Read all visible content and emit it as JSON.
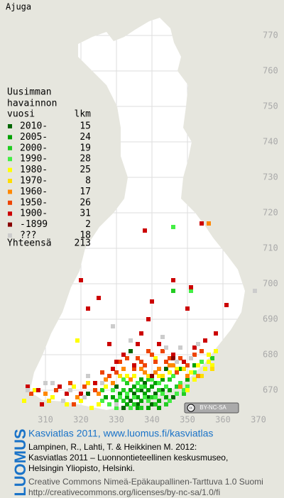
{
  "title": "Ajuga",
  "legend": {
    "title": [
      "Uusimman",
      "havainnon",
      "vuosi"
    ],
    "count_header": "lkm",
    "rows": [
      {
        "label": "2010-",
        "count": 15,
        "color": "#006600",
        "points": [
          [
            337,
            670
          ],
          [
            335,
            669
          ],
          [
            339,
            668
          ],
          [
            341,
            669
          ],
          [
            334,
            667
          ],
          [
            336,
            666
          ],
          [
            330,
            671
          ],
          [
            343,
            670
          ],
          [
            334,
            681
          ],
          [
            344,
            676
          ],
          [
            332,
            665
          ],
          [
            338,
            672
          ],
          [
            346,
            668
          ],
          [
            322,
            669
          ],
          [
            340,
            666
          ]
        ]
      },
      {
        "label": "2005-",
        "count": 24,
        "color": "#00a000",
        "points": [
          [
            336,
            668
          ],
          [
            338,
            669
          ],
          [
            340,
            671
          ],
          [
            333,
            668
          ],
          [
            337,
            667
          ],
          [
            342,
            667
          ],
          [
            335,
            671
          ],
          [
            339,
            670
          ],
          [
            331,
            669
          ],
          [
            344,
            668
          ],
          [
            336,
            665
          ],
          [
            341,
            672
          ],
          [
            348,
            676
          ],
          [
            333,
            666
          ],
          [
            345,
            670
          ],
          [
            337,
            673
          ],
          [
            329,
            668
          ],
          [
            342,
            665
          ],
          [
            339,
            665
          ],
          [
            334,
            670
          ],
          [
            350,
            673
          ],
          [
            327,
            668
          ],
          [
            343,
            673
          ],
          [
            352,
            677
          ]
        ]
      },
      {
        "label": "2000-",
        "count": 19,
        "color": "#22cc22",
        "points": [
          [
            346,
            698
          ],
          [
            357,
            679
          ],
          [
            338,
            671
          ],
          [
            332,
            670
          ],
          [
            340,
            668
          ],
          [
            344,
            666
          ],
          [
            336,
            670
          ],
          [
            330,
            667
          ],
          [
            342,
            670
          ],
          [
            335,
            666
          ],
          [
            347,
            671
          ],
          [
            337,
            665
          ],
          [
            341,
            666
          ],
          [
            333,
            672
          ],
          [
            349,
            669
          ],
          [
            326,
            670
          ],
          [
            339,
            673
          ],
          [
            345,
            673
          ],
          [
            332,
            667
          ]
        ]
      },
      {
        "label": "1990-",
        "count": 28,
        "color": "#44ee44",
        "points": [
          [
            346,
            716
          ],
          [
            351,
            698
          ],
          [
            338,
            668
          ],
          [
            336,
            672
          ],
          [
            334,
            665
          ],
          [
            340,
            673
          ],
          [
            343,
            669
          ],
          [
            331,
            668
          ],
          [
            345,
            667
          ],
          [
            347,
            669
          ],
          [
            329,
            670
          ],
          [
            328,
            666
          ],
          [
            341,
            668
          ],
          [
            350,
            671
          ],
          [
            335,
            668
          ],
          [
            339,
            667
          ],
          [
            333,
            669
          ],
          [
            344,
            671
          ],
          [
            337,
            671
          ],
          [
            342,
            672
          ],
          [
            330,
            665
          ],
          [
            352,
            675
          ],
          [
            348,
            672
          ],
          [
            326,
            667
          ],
          [
            354,
            678
          ],
          [
            346,
            674
          ],
          [
            332,
            673
          ],
          [
            349,
            670
          ]
        ]
      },
      {
        "label": "1980-",
        "count": 25,
        "color": "#ffff00",
        "points": [
          [
            319,
            684
          ],
          [
            341,
            679
          ],
          [
            356,
            680
          ],
          [
            353,
            677
          ],
          [
            355,
            676
          ],
          [
            307,
            670
          ],
          [
            304,
            667
          ],
          [
            312,
            668
          ],
          [
            318,
            671
          ],
          [
            325,
            666
          ],
          [
            333,
            674
          ],
          [
            350,
            670
          ],
          [
            352,
            673
          ],
          [
            342,
            674
          ],
          [
            356,
            678
          ],
          [
            327,
            671
          ],
          [
            358,
            681
          ],
          [
            323,
            665
          ],
          [
            347,
            676
          ],
          [
            320,
            667
          ],
          [
            345,
            675
          ],
          [
            351,
            675
          ],
          [
            316,
            666
          ],
          [
            335,
            674
          ],
          [
            357,
            677
          ]
        ]
      },
      {
        "label": "1970-",
        "count": 8,
        "color": "#ffdd00",
        "points": [
          [
            354,
            674
          ],
          [
            311,
            667
          ],
          [
            343,
            674
          ],
          [
            322,
            672
          ],
          [
            349,
            676
          ],
          [
            331,
            674
          ],
          [
            357,
            676
          ],
          [
            339,
            674
          ]
        ]
      },
      {
        "label": "1960-",
        "count": 17,
        "color": "#ff8800",
        "points": [
          [
            356,
            717
          ],
          [
            342,
            676
          ],
          [
            348,
            671
          ],
          [
            329,
            672
          ],
          [
            345,
            677
          ],
          [
            325,
            669
          ],
          [
            353,
            674
          ],
          [
            338,
            675
          ],
          [
            341,
            675
          ],
          [
            334,
            673
          ],
          [
            310,
            669
          ],
          [
            319,
            668
          ],
          [
            346,
            677
          ],
          [
            337,
            676
          ],
          [
            350,
            674
          ],
          [
            327,
            673
          ],
          [
            332,
            676
          ]
        ]
      },
      {
        "label": "1950-",
        "count": 26,
        "color": "#ee4400",
        "points": [
          [
            341,
            678
          ],
          [
            333,
            679
          ],
          [
            338,
            677
          ],
          [
            336,
            679
          ],
          [
            345,
            679
          ],
          [
            352,
            680
          ],
          [
            343,
            681
          ],
          [
            330,
            675
          ],
          [
            324,
            670
          ],
          [
            317,
            672
          ],
          [
            313,
            670
          ],
          [
            321,
            671
          ],
          [
            348,
            679
          ],
          [
            339,
            681
          ],
          [
            328,
            674
          ],
          [
            335,
            676
          ],
          [
            354,
            681
          ],
          [
            331,
            678
          ],
          [
            347,
            675
          ],
          [
            326,
            675
          ],
          [
            306,
            669
          ],
          [
            344,
            678
          ],
          [
            350,
            677
          ],
          [
            340,
            680
          ],
          [
            337,
            678
          ],
          [
            318,
            666
          ]
        ]
      },
      {
        "label": "1900-",
        "count": 31,
        "color": "#cc0000",
        "points": [
          [
            338,
            715
          ],
          [
            354,
            717
          ],
          [
            320,
            701
          ],
          [
            346,
            701
          ],
          [
            351,
            699
          ],
          [
            325,
            696
          ],
          [
            322,
            693
          ],
          [
            340,
            695
          ],
          [
            361,
            694
          ],
          [
            350,
            693
          ],
          [
            339,
            690
          ],
          [
            337,
            686
          ],
          [
            358,
            686
          ],
          [
            328,
            683
          ],
          [
            330,
            678
          ],
          [
            349,
            678
          ],
          [
            305,
            671
          ],
          [
            308,
            670
          ],
          [
            314,
            671
          ],
          [
            316,
            669
          ],
          [
            320,
            669
          ],
          [
            324,
            672
          ],
          [
            329,
            676
          ],
          [
            332,
            680
          ],
          [
            336,
            683
          ],
          [
            342,
            683
          ],
          [
            346,
            680
          ],
          [
            352,
            682
          ],
          [
            335,
            677
          ],
          [
            355,
            684
          ],
          [
            309,
            666
          ]
        ]
      },
      {
        "label": "-1899",
        "count": 2,
        "color": "#880000",
        "points": [
          [
            340,
            674
          ],
          [
            346,
            679
          ]
        ]
      },
      {
        "label": "???",
        "count": 18,
        "color": "#cccccc",
        "points": [
          [
            369,
            698
          ],
          [
            329,
            688
          ],
          [
            343,
            685
          ],
          [
            312,
            672
          ],
          [
            305,
            670
          ],
          [
            315,
            667
          ],
          [
            321,
            668
          ],
          [
            330,
            666
          ],
          [
            344,
            682
          ],
          [
            348,
            682
          ],
          [
            326,
            672
          ],
          [
            322,
            674
          ],
          [
            347,
            678
          ],
          [
            353,
            683
          ],
          [
            334,
            684
          ],
          [
            317,
            670
          ],
          [
            310,
            672
          ],
          [
            351,
            679
          ]
        ]
      }
    ],
    "total_label": "Yhteensä",
    "total": 213
  },
  "grid": {
    "x_ticks": [
      310,
      320,
      330,
      340,
      350,
      360,
      370
    ],
    "y_ticks": [
      670,
      680,
      690,
      700,
      710,
      720,
      730,
      740,
      750,
      760,
      770
    ]
  },
  "license_badge": "BY-NC-SA",
  "footer": {
    "brand": "LUOMUS",
    "heading": "Kasviatlas 2011, www.luomus.fi/kasviatlas",
    "citation": [
      "Lampinen, R., Lahti, T. & Heikkinen M. 2012:",
      "Kasviatlas 2011 – Luonnontieteellinen keskusmuseo,",
      "Helsingin Yliopisto, Helsinki."
    ],
    "license": [
      "Creative Commons Nimeä-Epäkaupallinen-Tarttuva 1.0 Suomi",
      "http://creativecommons.org/licenses/by-nc-sa/1.0/fi"
    ]
  }
}
